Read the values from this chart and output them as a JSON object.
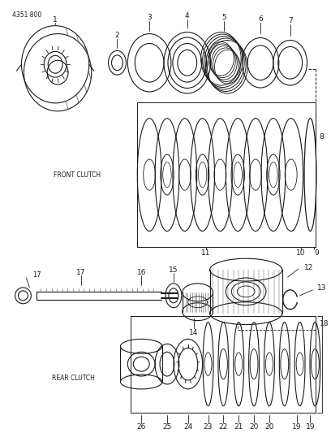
{
  "title_code": "4351 800",
  "bg_color": "#ffffff",
  "lc": "#1a1a1a",
  "front_clutch_label": "FRONT CLUTCH",
  "rear_clutch_label": "REAR CLUTCH",
  "figsize": [
    4.08,
    5.33
  ],
  "dpi": 100
}
